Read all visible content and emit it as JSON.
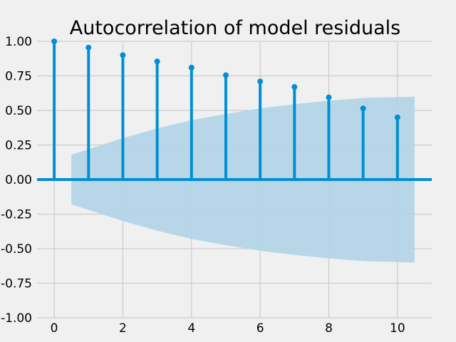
{
  "chart_data": {
    "type": "stem",
    "title": "Autocorrelation of model residuals",
    "xlabel": "",
    "ylabel": "",
    "xlim": [
      -0.5,
      11
    ],
    "ylim": [
      -1.0,
      1.0
    ],
    "x_ticks": [
      0,
      2,
      4,
      6,
      8,
      10
    ],
    "x_tick_labels": [
      "0",
      "2",
      "4",
      "6",
      "8",
      "10"
    ],
    "y_ticks": [
      -1.0,
      -0.75,
      -0.5,
      -0.25,
      0.0,
      0.25,
      0.5,
      0.75,
      1.0
    ],
    "y_tick_labels": [
      "-1.00",
      "-0.75",
      "-0.50",
      "-0.25",
      "0.00",
      "0.25",
      "0.50",
      "0.75",
      "1.00"
    ],
    "grid": true,
    "series": [
      {
        "lags": [
          0,
          1,
          2,
          3,
          4,
          5,
          6,
          7,
          8,
          9,
          10
        ],
        "values": [
          1.0,
          0.955,
          0.9,
          0.855,
          0.81,
          0.755,
          0.71,
          0.67,
          0.595,
          0.515,
          0.45
        ]
      }
    ],
    "confidence_band": {
      "lag_start": 0.5,
      "lag_end": 10.5,
      "upper_at_lags": [
        [
          0.5,
          0.18
        ],
        [
          1,
          0.22
        ],
        [
          2,
          0.3
        ],
        [
          3,
          0.37
        ],
        [
          4,
          0.43
        ],
        [
          5,
          0.475
        ],
        [
          6,
          0.515
        ],
        [
          7,
          0.545
        ],
        [
          8,
          0.57
        ],
        [
          9,
          0.59
        ],
        [
          10.5,
          0.6
        ]
      ]
    },
    "colors": {
      "stem": "#008fd5",
      "band": "#b3d5e8",
      "grid": "#cbcbcb",
      "background": "#f0f0f0"
    }
  }
}
